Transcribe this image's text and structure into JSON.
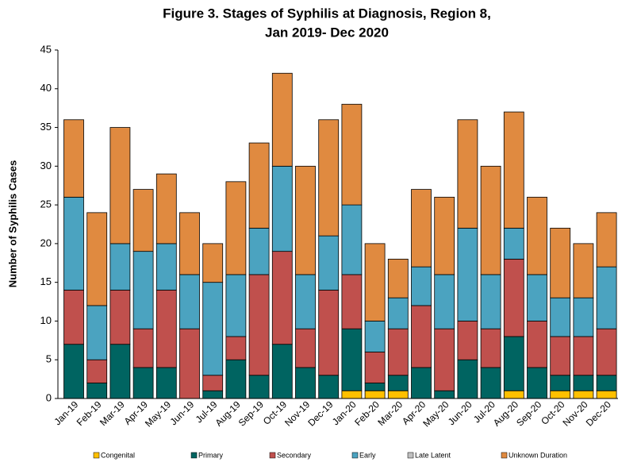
{
  "chart_data": {
    "type": "stacked_bar",
    "title": [
      "Figure 3. Stages of Syphilis at Diagnosis, Region 8,",
      "Jan 2019- Dec 2020"
    ],
    "y_label": "Number of Syphilis Cases",
    "categories": [
      "Jan-19",
      "Feb-19",
      "Mar-19",
      "Apr-19",
      "May-19",
      "Jun-19",
      "Jul-19",
      "Aug-19",
      "Sep-19",
      "Oct-19",
      "Nov-19",
      "Dec-19",
      "Jan-20",
      "Feb-20",
      "Mar-20",
      "Apr-20",
      "May-20",
      "Jun-20",
      "Jul-20",
      "Aug-20",
      "Sep-20",
      "Oct-20",
      "Nov-20",
      "Dec-20"
    ],
    "series": [
      {
        "name": "Congenital",
        "color": "#ffc000",
        "values": [
          0,
          0,
          0,
          0,
          0,
          0,
          0,
          0,
          0,
          0,
          0,
          0,
          1,
          1,
          1,
          0,
          0,
          0,
          0,
          1,
          0,
          1,
          1,
          1
        ]
      },
      {
        "name": "Primary",
        "color": "#006461",
        "values": [
          7,
          2,
          7,
          4,
          4,
          0,
          1,
          5,
          3,
          7,
          4,
          3,
          8,
          1,
          2,
          4,
          1,
          5,
          4,
          7,
          4,
          2,
          2,
          2
        ]
      },
      {
        "name": "Secondary",
        "color": "#c0504d",
        "values": [
          7,
          3,
          7,
          5,
          10,
          9,
          2,
          3,
          13,
          12,
          5,
          11,
          7,
          4,
          6,
          8,
          8,
          5,
          5,
          10,
          6,
          5,
          5,
          6
        ]
      },
      {
        "name": "Early",
        "color": "#4ba3c0",
        "values": [
          12,
          7,
          6,
          10,
          6,
          7,
          12,
          8,
          6,
          11,
          7,
          7,
          9,
          4,
          4,
          5,
          7,
          12,
          7,
          4,
          6,
          5,
          5,
          8
        ]
      },
      {
        "name": "Late Latent",
        "color": "#bfbfbf",
        "values": [
          0,
          0,
          0,
          0,
          0,
          0,
          0,
          0,
          0,
          0,
          0,
          0,
          0,
          0,
          0,
          0,
          0,
          0,
          0,
          0,
          0,
          0,
          0,
          0
        ]
      },
      {
        "name": "Unknown Duration",
        "color": "#e08a40",
        "values": [
          10,
          12,
          15,
          8,
          9,
          8,
          5,
          12,
          11,
          12,
          14,
          15,
          13,
          10,
          5,
          10,
          10,
          14,
          14,
          15,
          10,
          9,
          7,
          7
        ]
      }
    ],
    "ylim": [
      0,
      45
    ],
    "yticks": [
      0,
      5,
      10,
      15,
      20,
      25,
      30,
      35,
      40,
      45
    ],
    "grid": false
  }
}
